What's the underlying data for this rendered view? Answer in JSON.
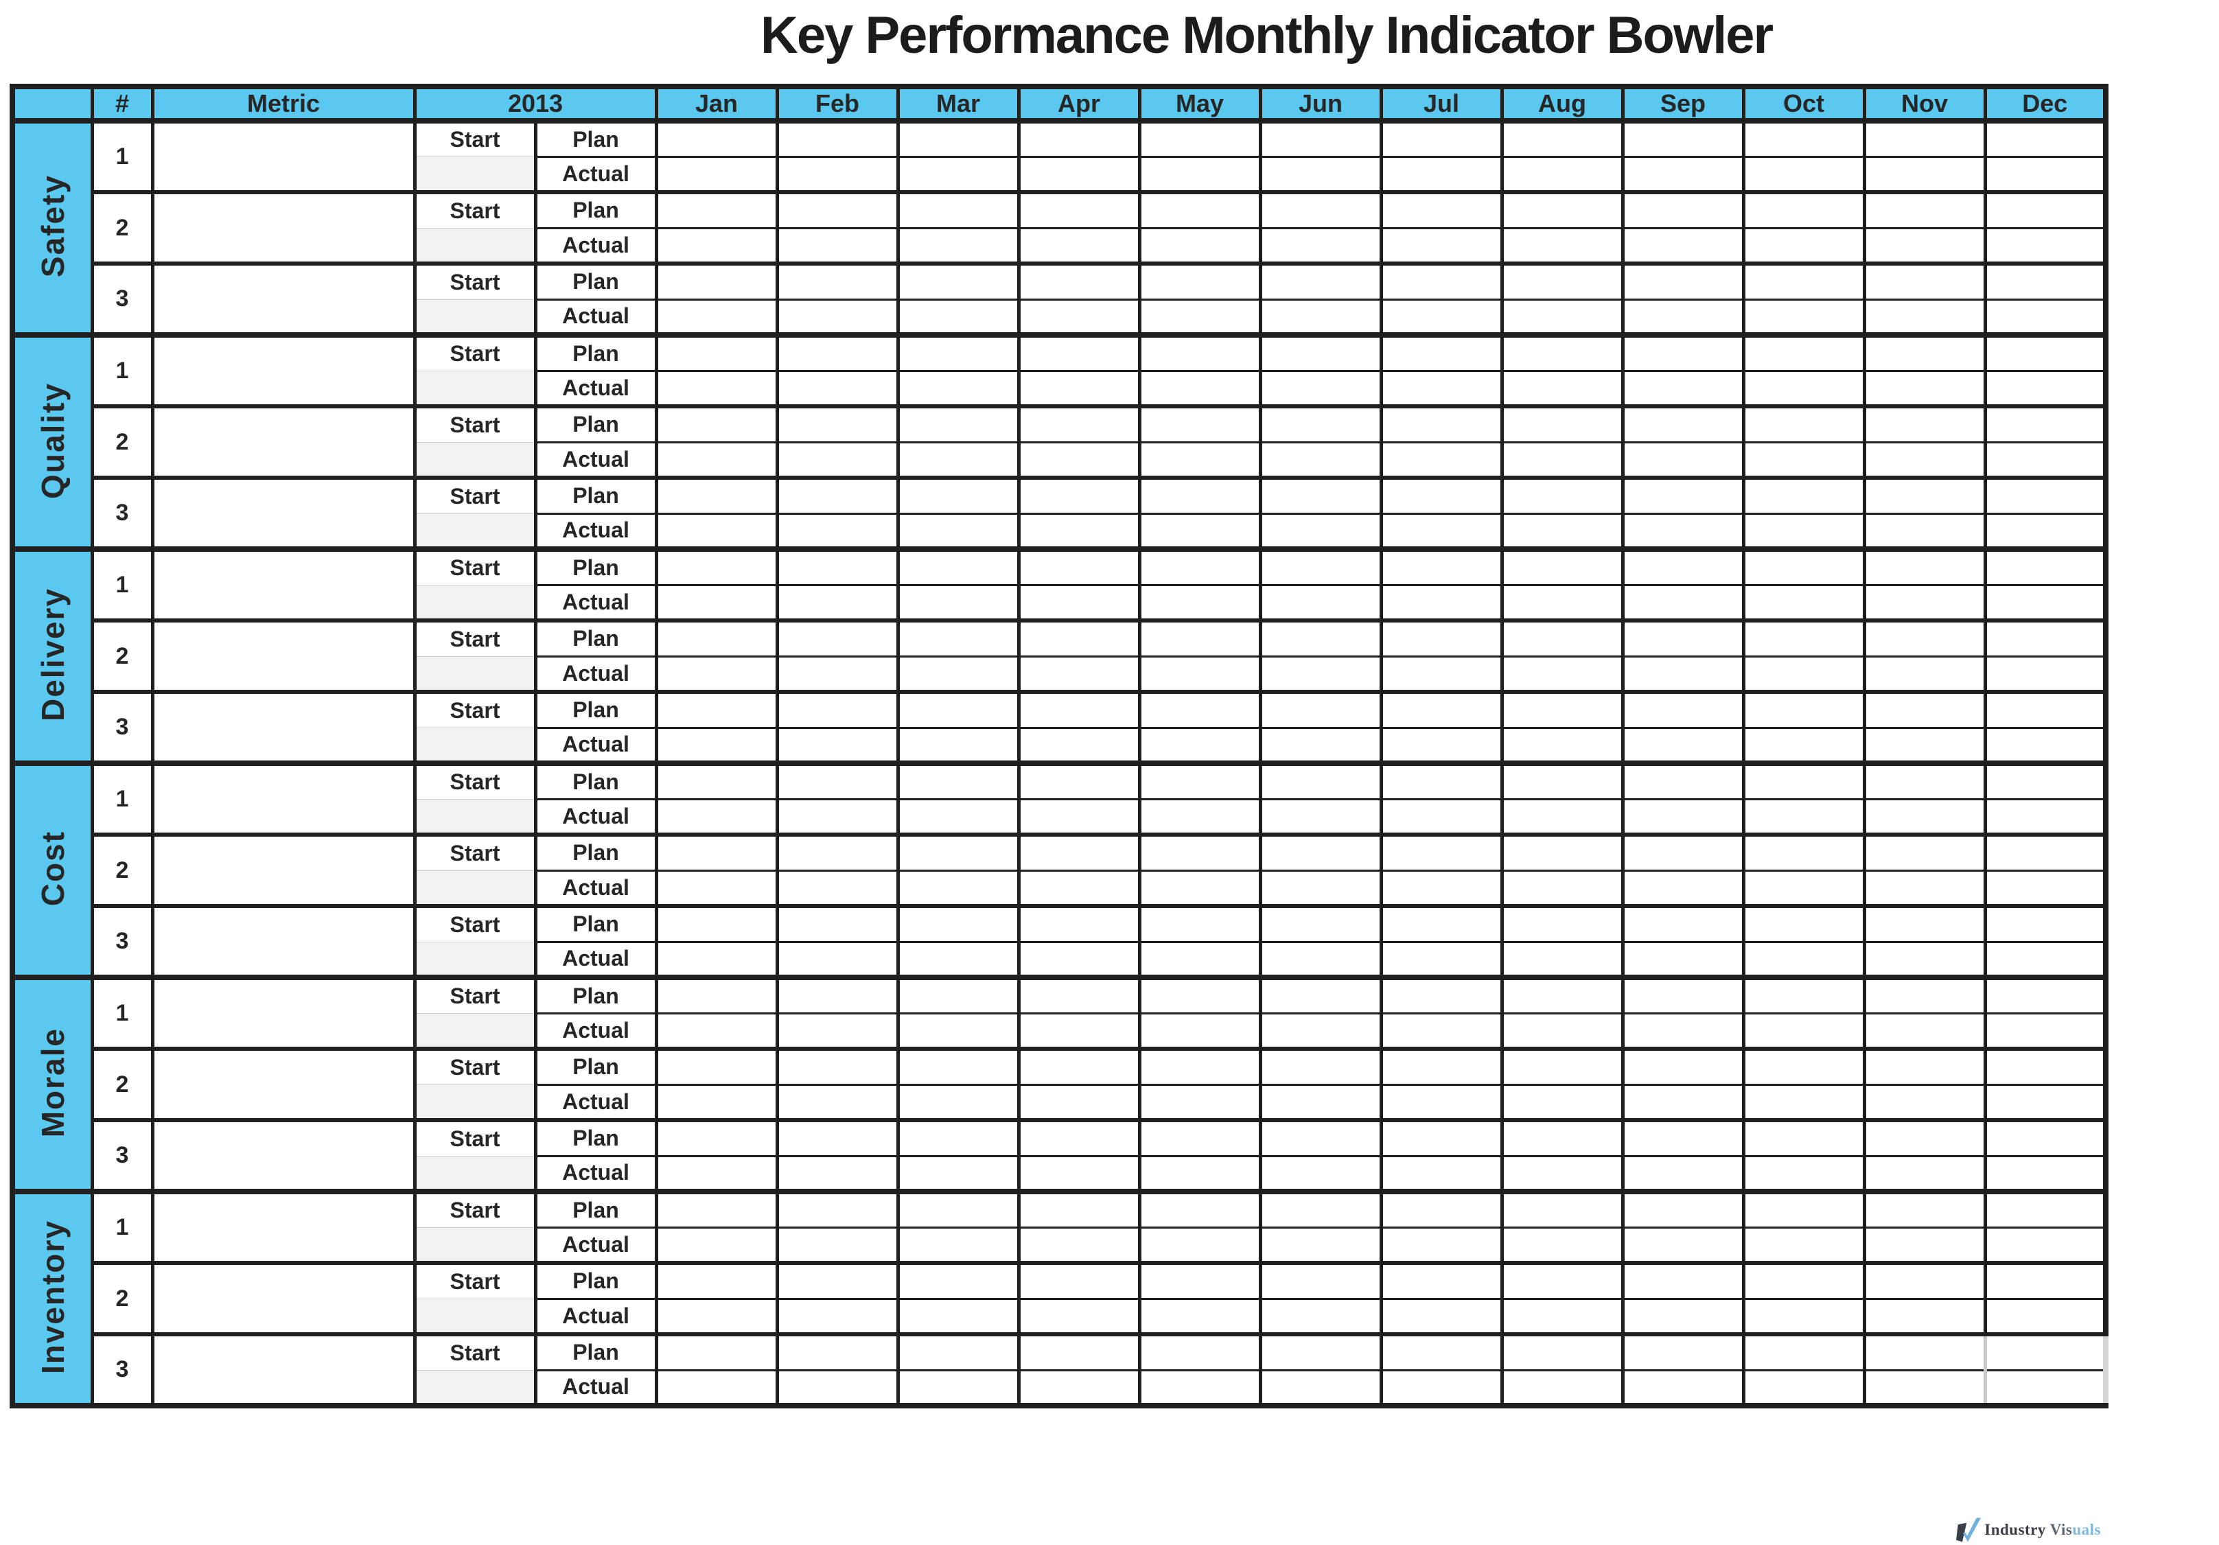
{
  "title": "Key Performance Monthly Indicator Bowler",
  "header": {
    "corner_label": "",
    "number_label": "#",
    "metric_label": "Metric",
    "year_label": "2013",
    "months": [
      "Jan",
      "Feb",
      "Mar",
      "Apr",
      "May",
      "Jun",
      "Jul",
      "Aug",
      "Sep",
      "Oct",
      "Nov",
      "Dec"
    ]
  },
  "rows": {
    "start_label": "Start",
    "plan_label": "Plan",
    "actual_label": "Actual",
    "metric_numbers": [
      "1",
      "2",
      "3"
    ]
  },
  "groups": [
    {
      "name": "Safety"
    },
    {
      "name": "Quality"
    },
    {
      "name": "Delivery"
    },
    {
      "name": "Cost"
    },
    {
      "name": "Morale"
    },
    {
      "name": "Inventory"
    }
  ],
  "footer": {
    "logo_icon": "check-icon",
    "logo_text_dark": "Industry ",
    "logo_text_mid": "Vis",
    "logo_text_light": "uals"
  },
  "colors": {
    "header_blue": "#5BC8F0",
    "border_dark": "#1F1F1F",
    "text_dark": "#262626",
    "start_cell_gray": "#F2F2F2",
    "light_border": "#C9C9C9",
    "logo_dark": "#3A3F47",
    "logo_mid": "#5D6873",
    "logo_blue": "#7FB9DE"
  }
}
